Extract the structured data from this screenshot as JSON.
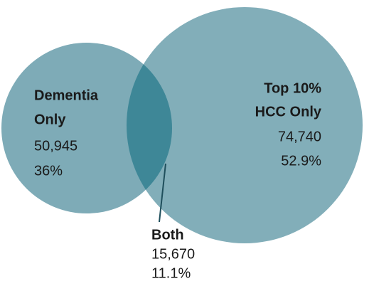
{
  "left": {
    "title": [
      "Dementia",
      "Only"
    ],
    "count": "50,945",
    "percent": "36%"
  },
  "right": {
    "title": [
      "Top 10%",
      "HCC Only"
    ],
    "count": "74,740",
    "percent": "52.9%"
  },
  "overlap": {
    "title": "Both",
    "count": "15,670",
    "percent": "11.1%"
  }
}
